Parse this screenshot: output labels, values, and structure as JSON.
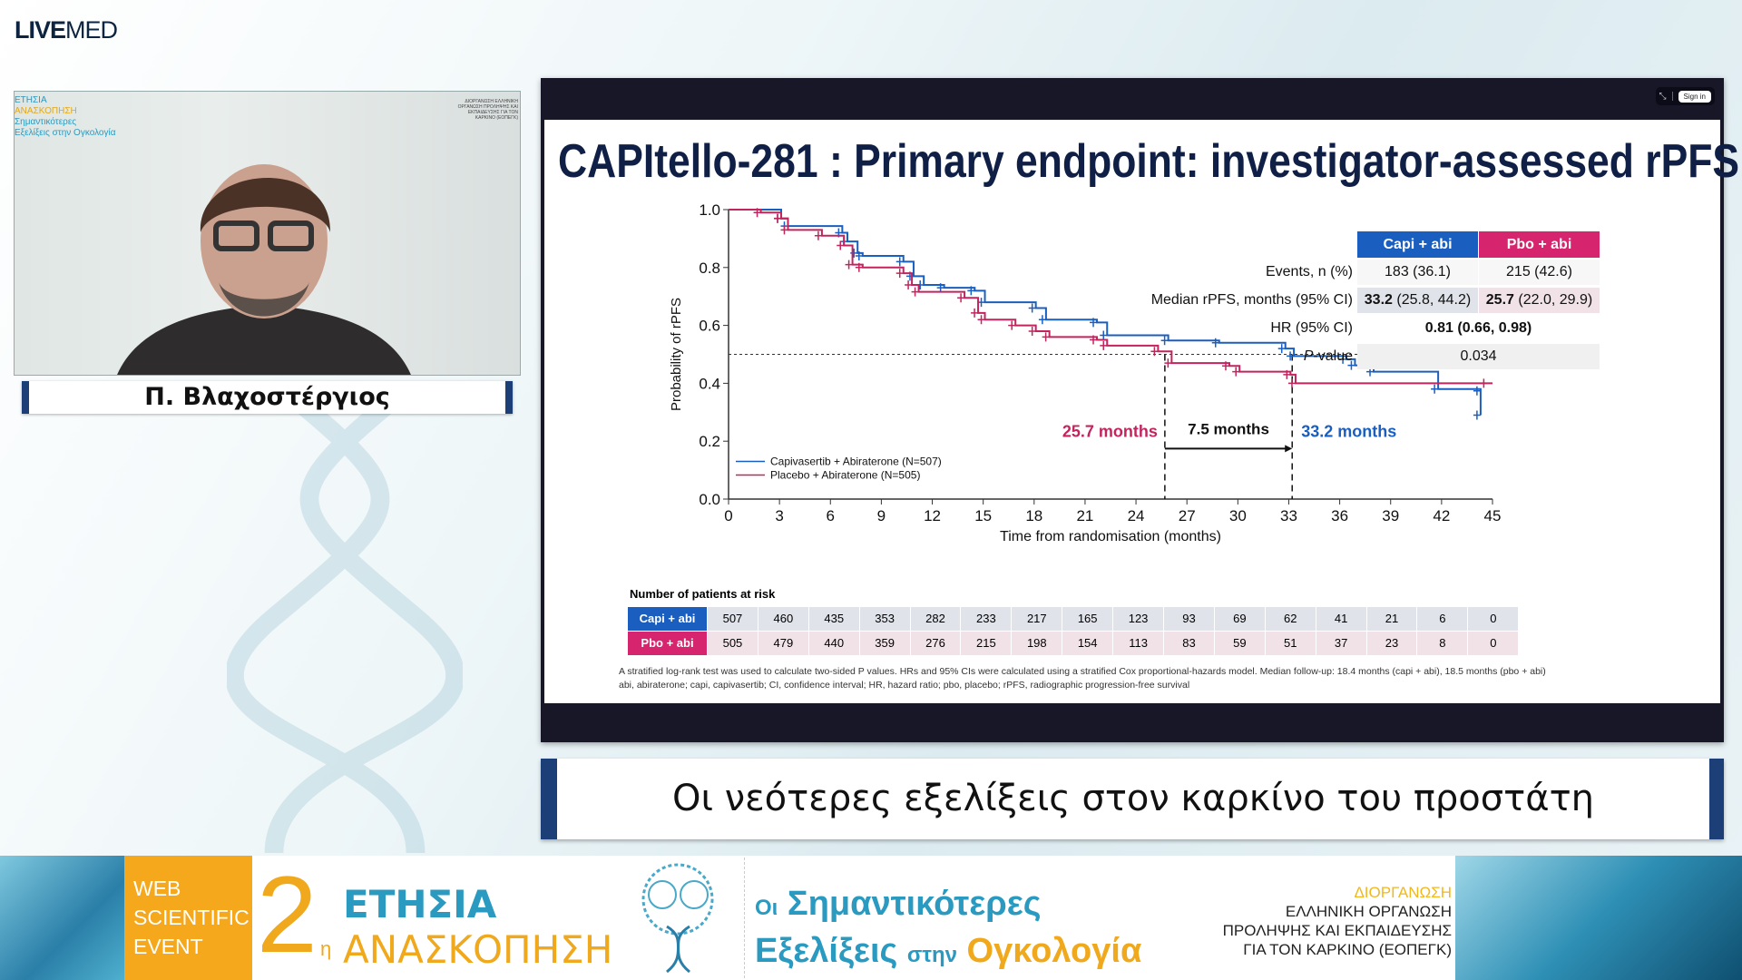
{
  "logo": {
    "bold": "LIVE",
    "light": "MED"
  },
  "webcam": {
    "overlay_line1": "ΕΤΗΣΙΑ",
    "overlay_line2": "ΑΝΑΣΚΟΠΗΣΗ",
    "overlay_line3": "Σημαντικότερες",
    "overlay_line4": "Εξελίξεις στην Ογκολογία",
    "overlay_org": "ΔΙΟΡΓΑΝΩΣΗ ΕΛΛΗΝΙΚΗ ΟΡΓΑΝΩΣΗ ΠΡΟΛΗΨΗΣ ΚΑΙ ΕΚΠΑΙΔΕΥΣΗΣ ΓΙΑ ΤΟΝ ΚΑΡΚΙΝΟ (ΕΟΠΕΓΚ)",
    "speaker_name": "Π. Βλαχοστέργιος"
  },
  "window": {
    "collapse_icon": "collapse-arrows-icon",
    "sign_in": "Sign in"
  },
  "slide": {
    "title": "CAPItello-281 : Primary endpoint: investigator-assessed rPFS",
    "summary_table": {
      "headers": [
        "Capi + abi (N=507)",
        "Pbo + abi (N=505)"
      ],
      "header_colors": [
        "#1a5fbf",
        "#d6246e"
      ],
      "rows": [
        {
          "label": "Events, n (%)",
          "capi": "183 (36.1)",
          "pbo": "215 (42.6)"
        },
        {
          "label": "Median rPFS, months (95% CI)",
          "capi_bold": "33.2",
          "capi": " (25.8, 44.2)",
          "pbo_bold": "25.7",
          "pbo": " (22.0, 29.9)"
        },
        {
          "label": "HR (95% CI)",
          "combined": "0.81 (0.66, 0.98)"
        },
        {
          "label_italic": "P",
          "label": "-value",
          "combined": "0.034"
        }
      ]
    },
    "risk_table": {
      "title": "Number of patients at risk",
      "rows": [
        {
          "label": "Capi + abi",
          "values": [
            "507",
            "460",
            "435",
            "353",
            "282",
            "233",
            "217",
            "165",
            "123",
            "93",
            "69",
            "62",
            "41",
            "21",
            "6",
            "0"
          ]
        },
        {
          "label": "Pbo + abi",
          "values": [
            "505",
            "479",
            "440",
            "359",
            "276",
            "215",
            "198",
            "154",
            "113",
            "83",
            "59",
            "51",
            "37",
            "23",
            "8",
            "0"
          ]
        }
      ]
    },
    "footnote_1": "A stratified log-rank test was used to calculate two-sided P values. HRs and 95% CIs were calculated using a stratified Cox proportional-hazards model. Median follow-up: 18.4 months (capi + abi), 18.5 months (pbo + abi)",
    "footnote_2": "abi, abiraterone; capi, capivasertib; CI, confidence interval; HR, hazard ratio; pbo, placebo; rPFS, radiographic progression-free survival"
  },
  "chart_data": {
    "type": "line",
    "title": "",
    "xlabel": "Time from randomisation (months)",
    "ylabel": "Probability of rPFS",
    "xlim": [
      0,
      45
    ],
    "ylim": [
      0,
      1
    ],
    "xticks": [
      "0",
      "3",
      "6",
      "9",
      "12",
      "15",
      "18",
      "21",
      "24",
      "27",
      "30",
      "33",
      "36",
      "39",
      "42",
      "45"
    ],
    "yticks": [
      "0.0",
      "0.2",
      "0.4",
      "0.6",
      "0.8",
      "1.0"
    ],
    "legend_position": "bottom-left",
    "series": [
      {
        "name": "Capivasertib + Abiraterone (N=507)",
        "color": "#1a5fbf",
        "step": true,
        "x": [
          0,
          3.1,
          3.5,
          6.7,
          7.0,
          7.6,
          7.9,
          10.3,
          10.9,
          11.5,
          12.7,
          14.5,
          15.1,
          18.1,
          18.7,
          21.7,
          22.3,
          25.9,
          28.9,
          32.8,
          33.3,
          36.4,
          36.9,
          38.0,
          41.8,
          44.3,
          44.3
        ],
        "y": [
          1.0,
          0.969,
          0.943,
          0.92,
          0.89,
          0.85,
          0.84,
          0.82,
          0.77,
          0.74,
          0.73,
          0.72,
          0.68,
          0.66,
          0.62,
          0.61,
          0.566,
          0.548,
          0.54,
          0.52,
          0.494,
          0.483,
          0.462,
          0.44,
          0.38,
          0.374,
          0.29
        ]
      },
      {
        "name": "Placebo + Abiraterone (N=505)",
        "color": "#c2245e",
        "step": true,
        "x": [
          0,
          1.9,
          3.1,
          3.5,
          5.5,
          6.8,
          7.3,
          7.9,
          10.3,
          10.8,
          11.2,
          13.9,
          14.7,
          15.1,
          16.9,
          18.1,
          18.9,
          21.7,
          22.3,
          25.3,
          26.1,
          29.5,
          30.1,
          33.1,
          33.4,
          44.7
        ],
        "y": [
          1.0,
          0.99,
          0.97,
          0.93,
          0.91,
          0.876,
          0.81,
          0.8,
          0.78,
          0.74,
          0.716,
          0.695,
          0.643,
          0.62,
          0.6,
          0.58,
          0.56,
          0.55,
          0.53,
          0.51,
          0.47,
          0.46,
          0.44,
          0.43,
          0.4,
          0.4
        ]
      }
    ],
    "reference_line_y": 0.5,
    "medians": [
      25.7,
      33.2
    ],
    "annotations": {
      "pbo_median": "25.7 months",
      "difference": "7.5 months",
      "capi_median": "33.2 months"
    }
  },
  "title_bar": "Οι νεότερες εξελίξεις στον καρκίνο του προστάτη",
  "banner": {
    "web_event": [
      "WEB",
      "SCIENTIFIC",
      "EVENT"
    ],
    "number": "2",
    "number_suffix": "η",
    "annual": "ΕΤΗΣΙΑ",
    "review": "ΑΝΑΣΚΟΠΗΣΗ",
    "line1_small": "Οι",
    "line1": "Σημαντικότερες",
    "line2a": "Εξελίξεις",
    "line2_small": "στην",
    "line2b": "Ογκολογία",
    "org_heading": "ΔΙΟΡΓΑΝΩΣΗ",
    "org_lines": [
      "ΕΛΛΗΝΙΚΗ ΟΡΓΑΝΩΣΗ",
      "ΠΡΟΛΗΨΗΣ ΚΑΙ ΕΚΠΑΙΔΕΥΣΗΣ",
      "ΓΙΑ ΤΟΝ ΚΑΡΚΙΝΟ (ΕΟΠΕΓΚ)"
    ]
  }
}
